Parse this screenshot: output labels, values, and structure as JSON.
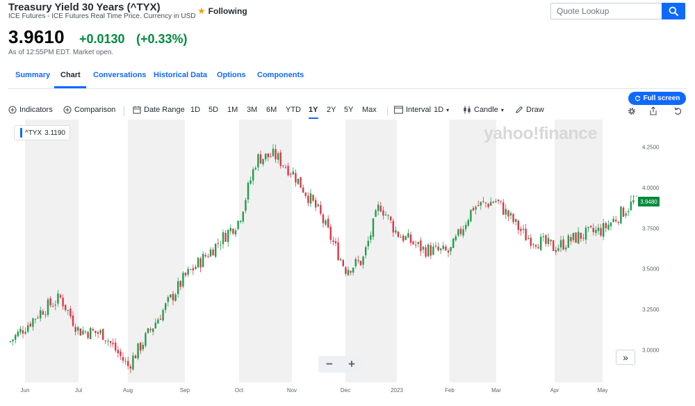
{
  "header": {
    "title": "Treasury Yield 30 Years (^TYX)",
    "subtitle": "ICE Futures - ICE Futures Real Time Price. Currency in USD",
    "follow_label": "Following"
  },
  "search": {
    "placeholder": "Quote Lookup"
  },
  "quote": {
    "price": "3.9610",
    "change": "+0.0130",
    "change_pct": "(+0.33%)",
    "as_of": "As of 12:55PM EDT. Market open."
  },
  "tabs": [
    "Summary",
    "Chart",
    "Conversations",
    "Historical Data",
    "Options",
    "Components"
  ],
  "active_tab": "Chart",
  "fullscreen_label": "Full screen",
  "toolbar": {
    "indicators": "Indicators",
    "comparison": "Comparison",
    "date_range": "Date Range",
    "ranges": [
      "1D",
      "5D",
      "1M",
      "3M",
      "6M",
      "YTD",
      "1Y",
      "2Y",
      "5Y",
      "Max"
    ],
    "selected_range": "1Y",
    "interval_label": "Interval",
    "interval_value": "1D",
    "chart_type": "Candle",
    "draw": "Draw"
  },
  "chart_overlay": {
    "legend_symbol": "^TYX",
    "legend_value": "3.1190",
    "watermark": "yahoo!finance",
    "last_price_tag": "3.9480",
    "zoom_out": "−",
    "zoom_in": "+",
    "scroll_label": "»"
  },
  "colors": {
    "up": "#1e9e4b",
    "down": "#e0344a",
    "accent": "#0f69ff",
    "band": "#f1f1f1"
  },
  "icons": [
    "star-icon",
    "search-icon",
    "plus-circle-icon",
    "calendar-icon",
    "candle-icon",
    "pencil-icon",
    "gear-icon",
    "share-icon",
    "reset-icon",
    "refresh-icon"
  ],
  "chart_data": {
    "type": "candlestick",
    "title": "^TYX",
    "ylim": [
      2.8,
      4.42
    ],
    "yticks": [
      "3.0000",
      "3.2500",
      "3.5000",
      "3.7500",
      "4.0000",
      "4.2500"
    ],
    "xticks": [
      "Jun",
      "Jul",
      "Aug",
      "Sep",
      "Oct",
      "Nov",
      "Dec",
      "2023",
      "Feb",
      "Mar",
      "Apr",
      "May"
    ],
    "bands": [
      [
        "Jun",
        "Jul"
      ],
      [
        "Aug",
        "Sep"
      ],
      [
        "Oct",
        "Nov"
      ],
      [
        "Dec",
        "2023"
      ],
      [
        "Feb",
        "Mar"
      ],
      [
        "Apr",
        "May"
      ]
    ],
    "close_path": [
      {
        "x": "Jun",
        "close": 3.05
      },
      {
        "x": "Jun mid",
        "close": 3.25
      },
      {
        "x": "Jun late",
        "close": 3.32
      },
      {
        "x": "Jul",
        "close": 3.12
      },
      {
        "x": "Jul mid",
        "close": 3.1
      },
      {
        "x": "Aug",
        "close": 2.9
      },
      {
        "x": "Aug mid",
        "close": 3.18
      },
      {
        "x": "Sep",
        "close": 3.45
      },
      {
        "x": "Sep mid",
        "close": 3.62
      },
      {
        "x": "Oct",
        "close": 3.8
      },
      {
        "x": "Oct mid",
        "close": 4.18
      },
      {
        "x": "Oct late",
        "close": 4.2
      },
      {
        "x": "Nov",
        "close": 4.1
      },
      {
        "x": "Nov mid",
        "close": 3.85
      },
      {
        "x": "Dec",
        "close": 3.5
      },
      {
        "x": "Dec mid",
        "close": 3.55
      },
      {
        "x": "Dec late",
        "close": 3.9
      },
      {
        "x": "2023",
        "close": 3.72
      },
      {
        "x": "Jan mid",
        "close": 3.62
      },
      {
        "x": "Feb",
        "close": 3.6
      },
      {
        "x": "Feb mid",
        "close": 3.88
      },
      {
        "x": "Mar",
        "close": 3.92
      },
      {
        "x": "Mar mid",
        "close": 3.7
      },
      {
        "x": "Apr",
        "close": 3.63
      },
      {
        "x": "Apr mid",
        "close": 3.7
      },
      {
        "x": "May",
        "close": 3.74
      },
      {
        "x": "May late",
        "close": 3.92
      }
    ],
    "last_price": 3.948
  }
}
